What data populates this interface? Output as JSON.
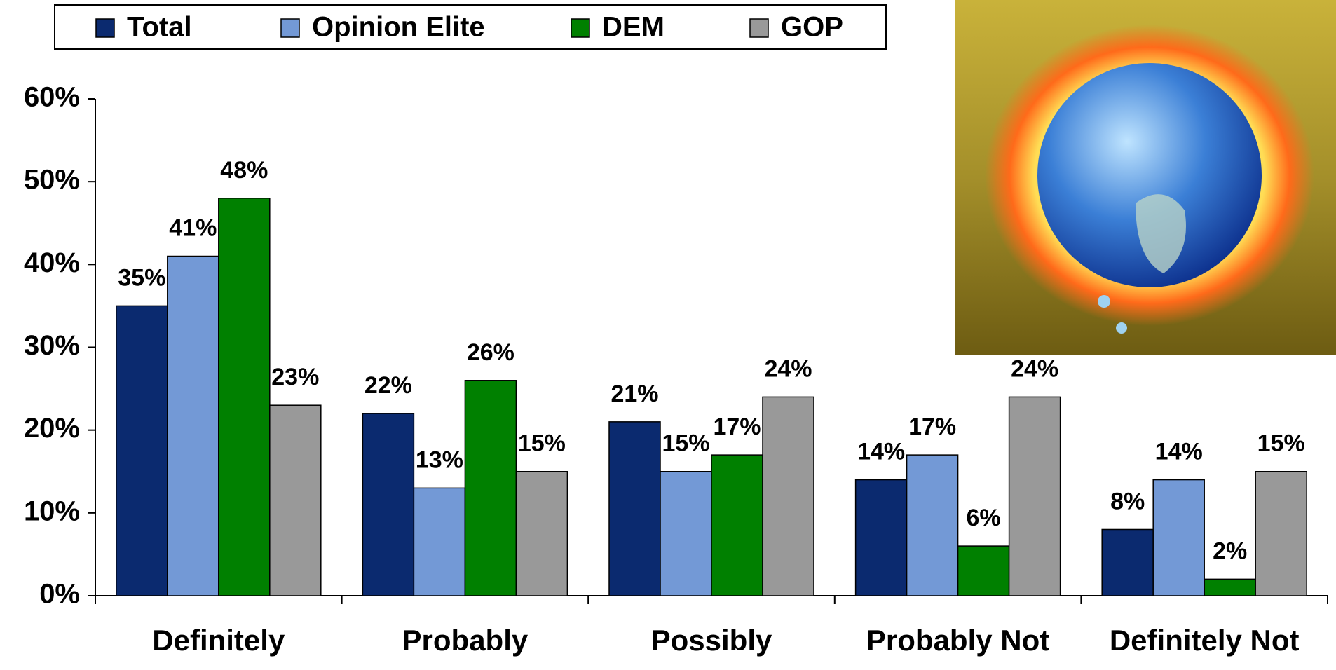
{
  "chart_data": {
    "type": "bar",
    "categories": [
      "Definitely",
      "Probably",
      "Possibly",
      "Probably Not",
      "Definitely Not"
    ],
    "series": [
      {
        "name": "Total",
        "color": "#0b2a6f",
        "values": [
          35,
          22,
          21,
          14,
          8
        ],
        "value_labels": [
          "35%",
          "22%",
          "21%",
          "14%",
          "8%"
        ]
      },
      {
        "name": "Opinion Elite",
        "color": "#7399d6",
        "values": [
          41,
          13,
          15,
          17,
          14
        ],
        "value_labels": [
          "41%",
          "13%",
          "15%",
          "17%",
          "14%"
        ]
      },
      {
        "name": "DEM",
        "color": "#008000",
        "values": [
          48,
          26,
          17,
          6,
          2
        ],
        "value_labels": [
          "48%",
          "26%",
          "17%",
          "6%",
          "2%"
        ]
      },
      {
        "name": "GOP",
        "color": "#999999",
        "values": [
          23,
          15,
          24,
          24,
          15
        ],
        "value_labels": [
          "23%",
          "15%",
          "24%",
          "24%",
          "15%"
        ]
      }
    ],
    "ylim": [
      0,
      60
    ],
    "yticks": [
      {
        "value": 0,
        "label": "0%"
      },
      {
        "value": 10,
        "label": "10%"
      },
      {
        "value": 20,
        "label": "20%"
      },
      {
        "value": 30,
        "label": "30%"
      },
      {
        "value": 40,
        "label": "40%"
      },
      {
        "value": 50,
        "label": "50%"
      },
      {
        "value": 60,
        "label": "60%"
      }
    ],
    "grid": false,
    "legend": "top"
  }
}
